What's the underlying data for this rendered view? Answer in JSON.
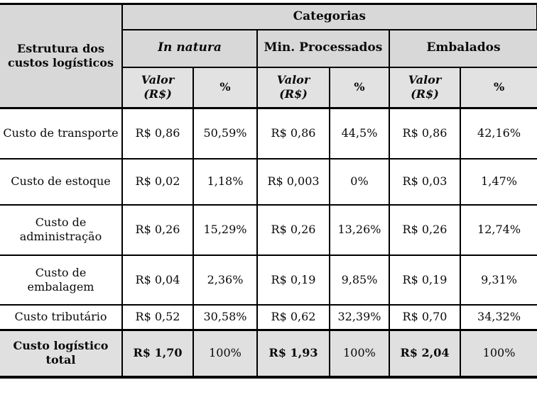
{
  "table": {
    "corner_header": "Estrutura dos custos logísticos",
    "categories_header": "Categorias",
    "categories": [
      {
        "label": "In natura"
      },
      {
        "label": "Min. Processados"
      },
      {
        "label": "Embalados"
      }
    ],
    "subheaders": {
      "valor": "Valor\n(R$)",
      "pct": "%"
    },
    "rows": [
      {
        "label": "Custo de transporte",
        "values": [
          "R$ 0,86",
          "50,59%",
          "R$ 0,86",
          "44,5%",
          "R$ 0,86",
          "42,16%"
        ]
      },
      {
        "label": "Custo de estoque",
        "values": [
          "R$ 0,02",
          "1,18%",
          "R$ 0,003",
          "0%",
          "R$ 0,03",
          "1,47%"
        ]
      },
      {
        "label": "Custo de administração",
        "values": [
          "R$ 0,26",
          "15,29%",
          "R$ 0,26",
          "13,26%",
          "R$ 0,26",
          "12,74%"
        ]
      },
      {
        "label": "Custo de embalagem",
        "values": [
          "R$ 0,04",
          "2,36%",
          "R$ 0,19",
          "9,85%",
          "R$ 0,19",
          "9,31%"
        ]
      },
      {
        "label": "Custo tributário",
        "values": [
          "R$ 0,52",
          "30,58%",
          "R$ 0,62",
          "32,39%",
          "R$ 0,70",
          "34,32%"
        ]
      }
    ],
    "total_row": {
      "label": "Custo logístico total",
      "values": [
        "R$ 1,70",
        "100%",
        "R$ 1,93",
        "100%",
        "R$ 2,04",
        "100%"
      ]
    },
    "colors": {
      "header_bg": "#d8d8d8",
      "subheader_bg": "#e2e2e2",
      "total_row_bg": "#e0e0e0",
      "border": "#000000",
      "text": "#0a0a0a"
    }
  }
}
